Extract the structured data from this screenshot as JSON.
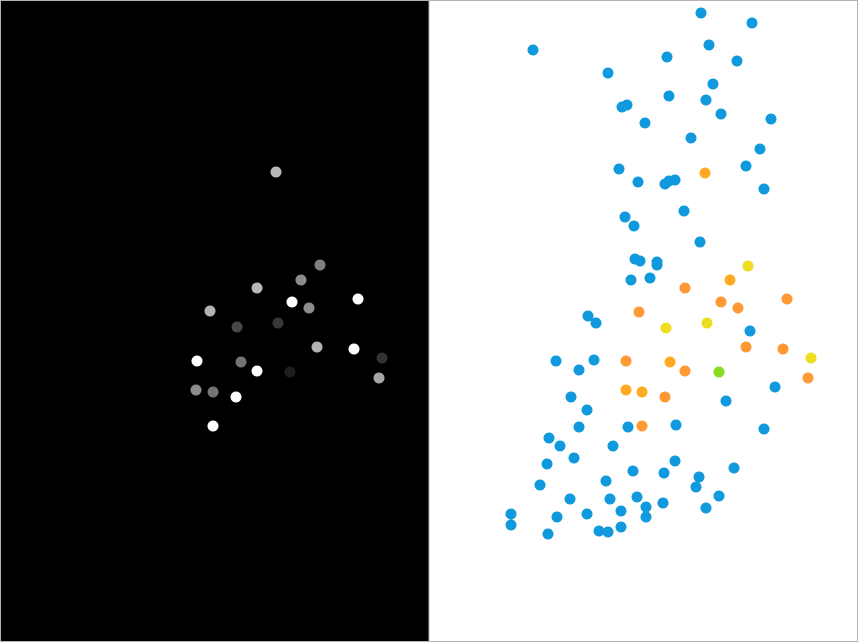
{
  "figure": {
    "colors": {
      "left_panel_background": "#000000",
      "right_panel_background": "#ffffff",
      "frame": "#b3b3b3"
    }
  },
  "chart_data": [
    {
      "type": "scatter",
      "title": "",
      "xlabel": "",
      "ylabel": "",
      "grid": false,
      "legend": "none",
      "axes_visible": false,
      "xlim": [
        0,
        428
      ],
      "ylim": [
        641,
        0
      ],
      "colormap": "grayscale",
      "points": [
        {
          "x": 276,
          "y": 172,
          "v": 0.72
        },
        {
          "x": 320,
          "y": 265,
          "v": 0.5
        },
        {
          "x": 301,
          "y": 280,
          "v": 0.55
        },
        {
          "x": 257,
          "y": 288,
          "v": 0.72
        },
        {
          "x": 292,
          "y": 302,
          "v": 1.0
        },
        {
          "x": 309,
          "y": 308,
          "v": 0.55
        },
        {
          "x": 358,
          "y": 299,
          "v": 1.0
        },
        {
          "x": 210,
          "y": 311,
          "v": 0.7
        },
        {
          "x": 237,
          "y": 327,
          "v": 0.28
        },
        {
          "x": 278,
          "y": 323,
          "v": 0.22
        },
        {
          "x": 317,
          "y": 347,
          "v": 0.7
        },
        {
          "x": 354,
          "y": 349,
          "v": 1.0
        },
        {
          "x": 382,
          "y": 358,
          "v": 0.2
        },
        {
          "x": 197,
          "y": 361,
          "v": 1.0
        },
        {
          "x": 241,
          "y": 362,
          "v": 0.45
        },
        {
          "x": 257,
          "y": 371,
          "v": 1.0
        },
        {
          "x": 290,
          "y": 372,
          "v": 0.12
        },
        {
          "x": 379,
          "y": 378,
          "v": 0.65
        },
        {
          "x": 196,
          "y": 390,
          "v": 0.55
        },
        {
          "x": 213,
          "y": 392,
          "v": 0.45
        },
        {
          "x": 236,
          "y": 397,
          "v": 1.0
        },
        {
          "x": 213,
          "y": 426,
          "v": 1.0
        }
      ]
    },
    {
      "type": "scatter",
      "title": "",
      "xlabel": "",
      "ylabel": "",
      "grid": false,
      "legend": "none",
      "axes_visible": false,
      "xlim": [
        430,
        858
      ],
      "ylim": [
        641,
        0
      ],
      "colors": {
        "blue": "#1199dd",
        "orange": "#ff9933",
        "amber": "#ffaa22",
        "yellow": "#eedd22",
        "green": "#88dd22"
      },
      "points": [
        {
          "x": 701,
          "y": 13,
          "c": "blue"
        },
        {
          "x": 752,
          "y": 23,
          "c": "blue"
        },
        {
          "x": 533,
          "y": 50,
          "c": "blue"
        },
        {
          "x": 709,
          "y": 45,
          "c": "blue"
        },
        {
          "x": 667,
          "y": 57,
          "c": "blue"
        },
        {
          "x": 737,
          "y": 61,
          "c": "blue"
        },
        {
          "x": 608,
          "y": 73,
          "c": "blue"
        },
        {
          "x": 713,
          "y": 84,
          "c": "blue"
        },
        {
          "x": 669,
          "y": 96,
          "c": "blue"
        },
        {
          "x": 706,
          "y": 100,
          "c": "blue"
        },
        {
          "x": 627,
          "y": 105,
          "c": "blue"
        },
        {
          "x": 622,
          "y": 107,
          "c": "blue"
        },
        {
          "x": 721,
          "y": 114,
          "c": "blue"
        },
        {
          "x": 771,
          "y": 119,
          "c": "blue"
        },
        {
          "x": 645,
          "y": 123,
          "c": "blue"
        },
        {
          "x": 691,
          "y": 138,
          "c": "blue"
        },
        {
          "x": 760,
          "y": 149,
          "c": "blue"
        },
        {
          "x": 746,
          "y": 166,
          "c": "blue"
        },
        {
          "x": 619,
          "y": 169,
          "c": "blue"
        },
        {
          "x": 705,
          "y": 173,
          "c": "amber"
        },
        {
          "x": 638,
          "y": 182,
          "c": "blue"
        },
        {
          "x": 669,
          "y": 181,
          "c": "blue"
        },
        {
          "x": 675,
          "y": 180,
          "c": "blue"
        },
        {
          "x": 665,
          "y": 184,
          "c": "blue"
        },
        {
          "x": 764,
          "y": 189,
          "c": "blue"
        },
        {
          "x": 684,
          "y": 211,
          "c": "blue"
        },
        {
          "x": 625,
          "y": 217,
          "c": "blue"
        },
        {
          "x": 634,
          "y": 226,
          "c": "blue"
        },
        {
          "x": 700,
          "y": 242,
          "c": "blue"
        },
        {
          "x": 635,
          "y": 259,
          "c": "blue"
        },
        {
          "x": 640,
          "y": 261,
          "c": "blue"
        },
        {
          "x": 657,
          "y": 262,
          "c": "blue"
        },
        {
          "x": 657,
          "y": 265,
          "c": "blue"
        },
        {
          "x": 748,
          "y": 266,
          "c": "yellow"
        },
        {
          "x": 631,
          "y": 280,
          "c": "blue"
        },
        {
          "x": 650,
          "y": 278,
          "c": "blue"
        },
        {
          "x": 730,
          "y": 280,
          "c": "amber"
        },
        {
          "x": 685,
          "y": 288,
          "c": "orange"
        },
        {
          "x": 787,
          "y": 299,
          "c": "orange"
        },
        {
          "x": 721,
          "y": 302,
          "c": "orange"
        },
        {
          "x": 738,
          "y": 308,
          "c": "orange"
        },
        {
          "x": 639,
          "y": 312,
          "c": "orange"
        },
        {
          "x": 588,
          "y": 316,
          "c": "blue"
        },
        {
          "x": 596,
          "y": 323,
          "c": "blue"
        },
        {
          "x": 707,
          "y": 323,
          "c": "yellow"
        },
        {
          "x": 666,
          "y": 328,
          "c": "yellow"
        },
        {
          "x": 750,
          "y": 331,
          "c": "blue"
        },
        {
          "x": 746,
          "y": 347,
          "c": "orange"
        },
        {
          "x": 783,
          "y": 349,
          "c": "orange"
        },
        {
          "x": 556,
          "y": 361,
          "c": "blue"
        },
        {
          "x": 594,
          "y": 360,
          "c": "blue"
        },
        {
          "x": 626,
          "y": 361,
          "c": "orange"
        },
        {
          "x": 670,
          "y": 362,
          "c": "amber"
        },
        {
          "x": 811,
          "y": 358,
          "c": "yellow"
        },
        {
          "x": 579,
          "y": 370,
          "c": "blue"
        },
        {
          "x": 685,
          "y": 371,
          "c": "orange"
        },
        {
          "x": 719,
          "y": 372,
          "c": "green"
        },
        {
          "x": 808,
          "y": 378,
          "c": "orange"
        },
        {
          "x": 775,
          "y": 387,
          "c": "blue"
        },
        {
          "x": 626,
          "y": 390,
          "c": "amber"
        },
        {
          "x": 642,
          "y": 392,
          "c": "amber"
        },
        {
          "x": 571,
          "y": 397,
          "c": "blue"
        },
        {
          "x": 665,
          "y": 397,
          "c": "orange"
        },
        {
          "x": 726,
          "y": 401,
          "c": "blue"
        },
        {
          "x": 587,
          "y": 410,
          "c": "blue"
        },
        {
          "x": 579,
          "y": 427,
          "c": "blue"
        },
        {
          "x": 628,
          "y": 427,
          "c": "blue"
        },
        {
          "x": 642,
          "y": 426,
          "c": "orange"
        },
        {
          "x": 676,
          "y": 425,
          "c": "blue"
        },
        {
          "x": 764,
          "y": 429,
          "c": "blue"
        },
        {
          "x": 549,
          "y": 438,
          "c": "blue"
        },
        {
          "x": 560,
          "y": 446,
          "c": "blue"
        },
        {
          "x": 613,
          "y": 446,
          "c": "blue"
        },
        {
          "x": 574,
          "y": 458,
          "c": "blue"
        },
        {
          "x": 547,
          "y": 464,
          "c": "blue"
        },
        {
          "x": 675,
          "y": 461,
          "c": "blue"
        },
        {
          "x": 633,
          "y": 471,
          "c": "blue"
        },
        {
          "x": 664,
          "y": 473,
          "c": "blue"
        },
        {
          "x": 734,
          "y": 468,
          "c": "blue"
        },
        {
          "x": 699,
          "y": 477,
          "c": "blue"
        },
        {
          "x": 606,
          "y": 481,
          "c": "blue"
        },
        {
          "x": 540,
          "y": 485,
          "c": "blue"
        },
        {
          "x": 696,
          "y": 487,
          "c": "blue"
        },
        {
          "x": 637,
          "y": 497,
          "c": "blue"
        },
        {
          "x": 719,
          "y": 496,
          "c": "blue"
        },
        {
          "x": 570,
          "y": 499,
          "c": "blue"
        },
        {
          "x": 610,
          "y": 499,
          "c": "blue"
        },
        {
          "x": 663,
          "y": 503,
          "c": "blue"
        },
        {
          "x": 646,
          "y": 507,
          "c": "blue"
        },
        {
          "x": 706,
          "y": 508,
          "c": "blue"
        },
        {
          "x": 621,
          "y": 511,
          "c": "blue"
        },
        {
          "x": 646,
          "y": 517,
          "c": "blue"
        },
        {
          "x": 511,
          "y": 514,
          "c": "blue"
        },
        {
          "x": 587,
          "y": 514,
          "c": "blue"
        },
        {
          "x": 557,
          "y": 517,
          "c": "blue"
        },
        {
          "x": 511,
          "y": 525,
          "c": "blue"
        },
        {
          "x": 621,
          "y": 527,
          "c": "blue"
        },
        {
          "x": 599,
          "y": 531,
          "c": "blue"
        },
        {
          "x": 608,
          "y": 532,
          "c": "blue"
        },
        {
          "x": 548,
          "y": 534,
          "c": "blue"
        }
      ]
    }
  ]
}
